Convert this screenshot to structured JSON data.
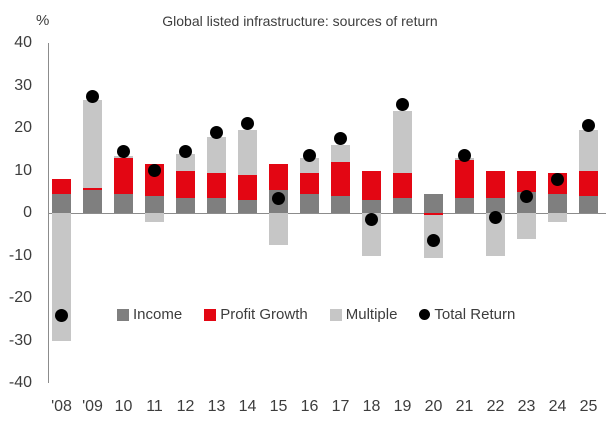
{
  "title": "Global listed infrastructure: sources of return",
  "y_axis": {
    "unit_label": "%",
    "ticks": [
      40,
      30,
      20,
      10,
      0,
      -10,
      -20,
      -30,
      -40
    ],
    "min": -40,
    "max": 40
  },
  "legend": {
    "items": [
      {
        "label": "Income",
        "color": "#7f7f7f",
        "shape": "square"
      },
      {
        "label": "Profit Growth",
        "color": "#e30613",
        "shape": "square"
      },
      {
        "label": "Multiple",
        "color": "#c6c6c6",
        "shape": "square"
      },
      {
        "label": "Total Return",
        "color": "#000000",
        "shape": "circle"
      }
    ]
  },
  "colors": {
    "income": "#7f7f7f",
    "profit_growth": "#e30613",
    "multiple": "#c6c6c6",
    "total_return": "#000000",
    "axis_line": "#8c8c8c",
    "text": "#3d3d3d",
    "background": "#ffffff"
  },
  "chart_data": {
    "type": "bar",
    "stacked": true,
    "title": "Global listed infrastructure: sources of return",
    "xlabel": "",
    "ylabel": "%",
    "ylim": [
      -40,
      40
    ],
    "grid": false,
    "legend_position": "bottom-inside",
    "categories": [
      "'08",
      "'09",
      "10",
      "11",
      "12",
      "13",
      "14",
      "15",
      "16",
      "17",
      "18",
      "19",
      "20",
      "21",
      "22",
      "23",
      "24",
      "25"
    ],
    "series": [
      {
        "name": "Income",
        "color": "#7f7f7f",
        "values": [
          4.5,
          5.5,
          4.5,
          4,
          3.5,
          3.5,
          3,
          5.5,
          4.5,
          4,
          3,
          3.5,
          4.5,
          3.5,
          3.5,
          5,
          4.5,
          4
        ]
      },
      {
        "name": "Profit Growth",
        "color": "#e30613",
        "values": [
          3.5,
          0.5,
          8.5,
          7.5,
          6.5,
          6,
          6,
          6,
          5,
          8,
          7,
          6,
          -0.5,
          9,
          6.5,
          5,
          5,
          6
        ]
      },
      {
        "name": "Multiple",
        "color": "#c6c6c6",
        "values": [
          -30,
          20.5,
          0.5,
          -2,
          4,
          8.5,
          10.5,
          -7.5,
          3.5,
          4,
          -10,
          14.5,
          -10,
          0.5,
          -10,
          -6,
          -2,
          9.5
        ]
      }
    ],
    "dot_series": {
      "name": "Total Return",
      "color": "#000000",
      "values": [
        -24,
        27.5,
        14.5,
        10,
        14.5,
        19,
        21,
        3.5,
        13.5,
        17.5,
        -1.5,
        25.5,
        -6.5,
        13.5,
        -1,
        4,
        8,
        20.5
      ]
    }
  }
}
